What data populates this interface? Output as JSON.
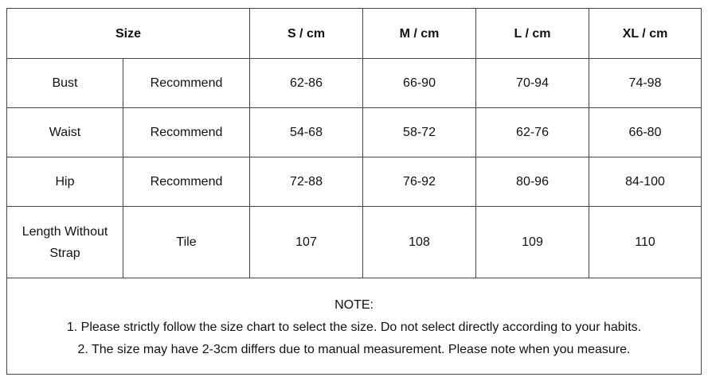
{
  "table": {
    "header": {
      "size": "Size",
      "columns": [
        "S / cm",
        "M / cm",
        "L / cm",
        "XL / cm"
      ]
    },
    "rows": [
      {
        "measure": "Bust",
        "type": "Recommend",
        "values": [
          "62-86",
          "66-90",
          "70-94",
          "74-98"
        ]
      },
      {
        "measure": "Waist",
        "type": "Recommend",
        "values": [
          "54-68",
          "58-72",
          "62-76",
          "66-80"
        ]
      },
      {
        "measure": "Hip",
        "type": "Recommend",
        "values": [
          "72-88",
          "76-92",
          "80-96",
          "84-100"
        ]
      },
      {
        "measure_line1": "Length Without",
        "measure_line2": "Strap",
        "type": "Tile",
        "values": [
          "107",
          "108",
          "109",
          "110"
        ]
      }
    ]
  },
  "note": {
    "title": "NOTE:",
    "lines": [
      "1. Please strictly follow the size chart  to select the size. Do not select directly according to your habits.",
      "2. The size may have 2-3cm differs due to manual measurement. Please note when you measure."
    ]
  }
}
